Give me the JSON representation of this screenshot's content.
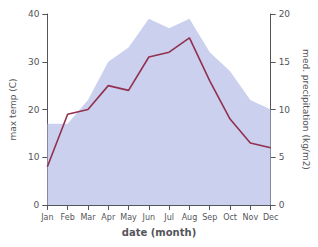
{
  "chart_data": {
    "type": "line",
    "categories": [
      "Jan",
      "Feb",
      "Mar",
      "Apr",
      "May",
      "Jun",
      "Jul",
      "Aug",
      "Sep",
      "Oct",
      "Nov",
      "Dec"
    ],
    "series": [
      {
        "type": "area",
        "color": "#b8c0e8",
        "values": [
          17,
          17,
          22,
          30,
          33,
          39,
          37,
          39,
          32,
          28,
          22,
          20
        ]
      },
      {
        "type": "line",
        "color": "#933050",
        "values": [
          8,
          19,
          20,
          25,
          24,
          31,
          32,
          35,
          26,
          18,
          13,
          12
        ]
      }
    ],
    "xlabel": "date (month)",
    "ylabel": "max temp (C)",
    "y2label": "med. precipitation (kg/m2)",
    "ylim": [
      0,
      40
    ],
    "yticks": [
      0,
      10,
      20,
      30,
      40
    ],
    "y2lim": [
      0,
      20
    ],
    "y2ticks": [
      0,
      5,
      10,
      15,
      20
    ],
    "grid": false
  }
}
